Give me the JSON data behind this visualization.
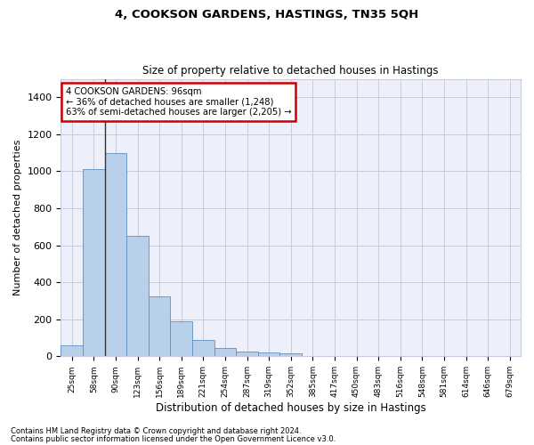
{
  "title": "4, COOKSON GARDENS, HASTINGS, TN35 5QH",
  "subtitle": "Size of property relative to detached houses in Hastings",
  "xlabel": "Distribution of detached houses by size in Hastings",
  "ylabel": "Number of detached properties",
  "footnote1": "Contains HM Land Registry data © Crown copyright and database right 2024.",
  "footnote2": "Contains public sector information licensed under the Open Government Licence v3.0.",
  "annotation_line1": "4 COOKSON GARDENS: 96sqm",
  "annotation_line2": "← 36% of detached houses are smaller (1,248)",
  "annotation_line3": "63% of semi-detached houses are larger (2,205) →",
  "bar_color": "#b8d0ea",
  "bar_edge_color": "#6090c0",
  "vline_color": "#333333",
  "annotation_box_edgecolor": "#cc0000",
  "categories": [
    "25sqm",
    "58sqm",
    "90sqm",
    "123sqm",
    "156sqm",
    "189sqm",
    "221sqm",
    "254sqm",
    "287sqm",
    "319sqm",
    "352sqm",
    "385sqm",
    "417sqm",
    "450sqm",
    "483sqm",
    "516sqm",
    "548sqm",
    "581sqm",
    "614sqm",
    "646sqm",
    "679sqm"
  ],
  "values": [
    60,
    1010,
    1100,
    650,
    325,
    190,
    90,
    45,
    28,
    22,
    18,
    0,
    0,
    0,
    0,
    0,
    0,
    0,
    0,
    0,
    0
  ],
  "ylim": [
    0,
    1500
  ],
  "yticks": [
    0,
    200,
    400,
    600,
    800,
    1000,
    1200,
    1400
  ],
  "vline_x_index": 2,
  "background_color": "#edf0fa",
  "grid_color": "#c5cce0"
}
